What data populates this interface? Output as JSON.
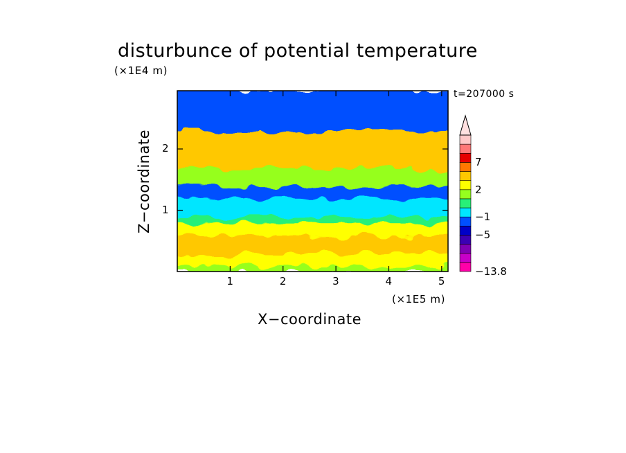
{
  "chart_data": {
    "type": "heatmap",
    "title": "disturbunce of potential temperature",
    "xlabel": "X−coordinate",
    "ylabel": "Z−coordinate",
    "x_unit_label": "(×1E5 m)",
    "y_unit_label": "(×1E4 m)",
    "time_label": "t=207000 s",
    "xlim": [
      0,
      5.12
    ],
    "ylim": [
      0,
      2.95
    ],
    "x_ticks": [
      1,
      2,
      3,
      4,
      5
    ],
    "y_ticks": [
      1,
      2
    ],
    "x_tick_labels": [
      "1",
      "2",
      "3",
      "4",
      "5"
    ],
    "y_tick_labels": [
      "1",
      "2"
    ],
    "colorbar": {
      "levels": [
        -13.8,
        -11,
        -9,
        -7,
        -5,
        -3,
        -1,
        0,
        1,
        2,
        3,
        5,
        7,
        9,
        11
      ],
      "labeled_levels": [
        "7",
        "2",
        "−1",
        "−5",
        "−13.8"
      ],
      "colors": [
        "#ff00a8",
        "#c800c8",
        "#8200b4",
        "#3c00b4",
        "#0000c8",
        "#0050ff",
        "#00e6ff",
        "#28f078",
        "#96ff1e",
        "#ffff00",
        "#ffc800",
        "#ff7800",
        "#e60000",
        "#ff7878",
        "#ffc8c8"
      ],
      "extend": "max"
    },
    "bands": [
      {
        "z": [
          0.0,
          0.1
        ],
        "value": 1
      },
      {
        "z": [
          0.1,
          0.3
        ],
        "value": 2
      },
      {
        "z": [
          0.3,
          0.6
        ],
        "value": 3
      },
      {
        "z": [
          0.6,
          0.8
        ],
        "value": 2
      },
      {
        "z": [
          0.8,
          0.9
        ],
        "value": 0.5
      },
      {
        "z": [
          0.9,
          1.2
        ],
        "value": -0.5
      },
      {
        "z": [
          1.2,
          1.4
        ],
        "value": -3
      },
      {
        "z": [
          1.4,
          1.7
        ],
        "value": 1
      },
      {
        "z": [
          1.7,
          2.3
        ],
        "value": 3
      },
      {
        "z": [
          2.3,
          2.95
        ],
        "value": -3
      }
    ]
  }
}
